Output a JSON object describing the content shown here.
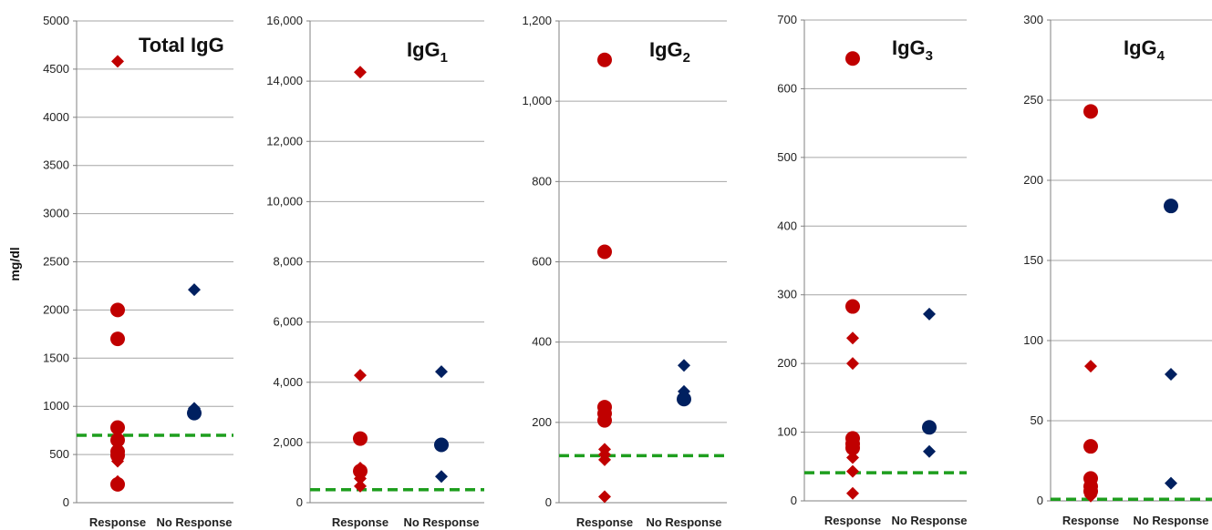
{
  "ylabel": "mg/dl",
  "colors": {
    "response": "#c00000",
    "no_response": "#002060",
    "threshold": "#1e9e1e",
    "grid": "#a6a6a6"
  },
  "chart_data": [
    {
      "type": "scatter",
      "title_main": "Total IgG",
      "title_sub": "",
      "categories": [
        "Response",
        "No Response"
      ],
      "ylim": [
        0,
        5000
      ],
      "yticks": [
        0,
        500,
        1000,
        1500,
        2000,
        2500,
        3000,
        3500,
        4000,
        4500,
        5000
      ],
      "ytick_labels": [
        "0",
        "500",
        "1000",
        "1500",
        "2000",
        "2500",
        "3000",
        "3500",
        "4000",
        "4500",
        "5000"
      ],
      "threshold": 700,
      "points": [
        {
          "cat": 0,
          "y": 4580,
          "marker": "diamond"
        },
        {
          "cat": 0,
          "y": 2000,
          "marker": "circle"
        },
        {
          "cat": 0,
          "y": 1700,
          "marker": "circle"
        },
        {
          "cat": 0,
          "y": 780,
          "marker": "circle"
        },
        {
          "cat": 0,
          "y": 650,
          "marker": "circle"
        },
        {
          "cat": 0,
          "y": 530,
          "marker": "circle"
        },
        {
          "cat": 0,
          "y": 490,
          "marker": "circle"
        },
        {
          "cat": 0,
          "y": 430,
          "marker": "diamond"
        },
        {
          "cat": 0,
          "y": 220,
          "marker": "diamond"
        },
        {
          "cat": 0,
          "y": 190,
          "marker": "circle"
        },
        {
          "cat": 1,
          "y": 2210,
          "marker": "diamond"
        },
        {
          "cat": 1,
          "y": 980,
          "marker": "diamond"
        },
        {
          "cat": 1,
          "y": 930,
          "marker": "circle"
        }
      ]
    },
    {
      "type": "scatter",
      "title_main": "IgG",
      "title_sub": "1",
      "categories": [
        "Response",
        "No Response"
      ],
      "ylim": [
        0,
        16000
      ],
      "yticks": [
        0,
        2000,
        4000,
        6000,
        8000,
        10000,
        12000,
        14000,
        16000
      ],
      "ytick_labels": [
        "0",
        "2,000",
        "4,000",
        "6,000",
        "8,000",
        "10,000",
        "12,000",
        "14,000",
        "16,000"
      ],
      "threshold": 430,
      "points": [
        {
          "cat": 0,
          "y": 14300,
          "marker": "diamond"
        },
        {
          "cat": 0,
          "y": 4230,
          "marker": "diamond"
        },
        {
          "cat": 0,
          "y": 2130,
          "marker": "circle"
        },
        {
          "cat": 0,
          "y": 1150,
          "marker": "diamond"
        },
        {
          "cat": 0,
          "y": 1050,
          "marker": "circle"
        },
        {
          "cat": 0,
          "y": 800,
          "marker": "diamond"
        },
        {
          "cat": 0,
          "y": 550,
          "marker": "diamond"
        },
        {
          "cat": 1,
          "y": 4350,
          "marker": "diamond"
        },
        {
          "cat": 1,
          "y": 1920,
          "marker": "circle"
        },
        {
          "cat": 1,
          "y": 870,
          "marker": "diamond"
        }
      ]
    },
    {
      "type": "scatter",
      "title_main": "IgG",
      "title_sub": "2",
      "categories": [
        "Response",
        "No Response"
      ],
      "ylim": [
        0,
        1200
      ],
      "yticks": [
        0,
        200,
        400,
        600,
        800,
        1000,
        1200
      ],
      "ytick_labels": [
        "0",
        "200",
        "400",
        "600",
        "800",
        "1,000",
        "1,200"
      ],
      "threshold": 117,
      "points": [
        {
          "cat": 0,
          "y": 1103,
          "marker": "circle"
        },
        {
          "cat": 0,
          "y": 625,
          "marker": "circle"
        },
        {
          "cat": 0,
          "y": 238,
          "marker": "circle"
        },
        {
          "cat": 0,
          "y": 222,
          "marker": "circle"
        },
        {
          "cat": 0,
          "y": 205,
          "marker": "circle"
        },
        {
          "cat": 0,
          "y": 133,
          "marker": "diamond"
        },
        {
          "cat": 0,
          "y": 120,
          "marker": "diamond"
        },
        {
          "cat": 0,
          "y": 107,
          "marker": "diamond"
        },
        {
          "cat": 0,
          "y": 15,
          "marker": "diamond"
        },
        {
          "cat": 1,
          "y": 342,
          "marker": "diamond"
        },
        {
          "cat": 1,
          "y": 277,
          "marker": "diamond"
        },
        {
          "cat": 1,
          "y": 258,
          "marker": "circle"
        }
      ]
    },
    {
      "type": "scatter",
      "title_main": "IgG",
      "title_sub": "3",
      "categories": [
        "Response",
        "No Response"
      ],
      "ylim": [
        0,
        700
      ],
      "yticks": [
        0,
        100,
        200,
        300,
        400,
        500,
        600,
        700
      ],
      "ytick_labels": [
        "0",
        "100",
        "200",
        "300",
        "400",
        "500",
        "600",
        "700"
      ],
      "threshold": 41,
      "points": [
        {
          "cat": 0,
          "y": 644,
          "marker": "circle"
        },
        {
          "cat": 0,
          "y": 283,
          "marker": "circle"
        },
        {
          "cat": 0,
          "y": 237,
          "marker": "diamond"
        },
        {
          "cat": 0,
          "y": 200,
          "marker": "diamond"
        },
        {
          "cat": 0,
          "y": 91,
          "marker": "circle"
        },
        {
          "cat": 0,
          "y": 83,
          "marker": "circle"
        },
        {
          "cat": 0,
          "y": 77,
          "marker": "circle"
        },
        {
          "cat": 0,
          "y": 63,
          "marker": "diamond"
        },
        {
          "cat": 0,
          "y": 43,
          "marker": "diamond"
        },
        {
          "cat": 0,
          "y": 11,
          "marker": "diamond"
        },
        {
          "cat": 1,
          "y": 272,
          "marker": "diamond"
        },
        {
          "cat": 1,
          "y": 107,
          "marker": "circle"
        },
        {
          "cat": 1,
          "y": 72,
          "marker": "diamond"
        }
      ]
    },
    {
      "type": "scatter",
      "title_main": "IgG",
      "title_sub": "4",
      "categories": [
        "Response",
        "No Response"
      ],
      "ylim": [
        0,
        300
      ],
      "yticks": [
        0,
        50,
        100,
        150,
        200,
        250,
        300
      ],
      "ytick_labels": [
        "0",
        "50",
        "100",
        "150",
        "200",
        "250",
        "300"
      ],
      "threshold": 1,
      "points": [
        {
          "cat": 0,
          "y": 243,
          "marker": "circle"
        },
        {
          "cat": 0,
          "y": 84,
          "marker": "diamond"
        },
        {
          "cat": 0,
          "y": 34,
          "marker": "circle"
        },
        {
          "cat": 0,
          "y": 14,
          "marker": "circle"
        },
        {
          "cat": 0,
          "y": 9,
          "marker": "circle"
        },
        {
          "cat": 0,
          "y": 6,
          "marker": "circle"
        },
        {
          "cat": 0,
          "y": 3,
          "marker": "diamond"
        },
        {
          "cat": 1,
          "y": 184,
          "marker": "circle"
        },
        {
          "cat": 1,
          "y": 79,
          "marker": "diamond"
        },
        {
          "cat": 1,
          "y": 11,
          "marker": "diamond"
        }
      ]
    }
  ]
}
